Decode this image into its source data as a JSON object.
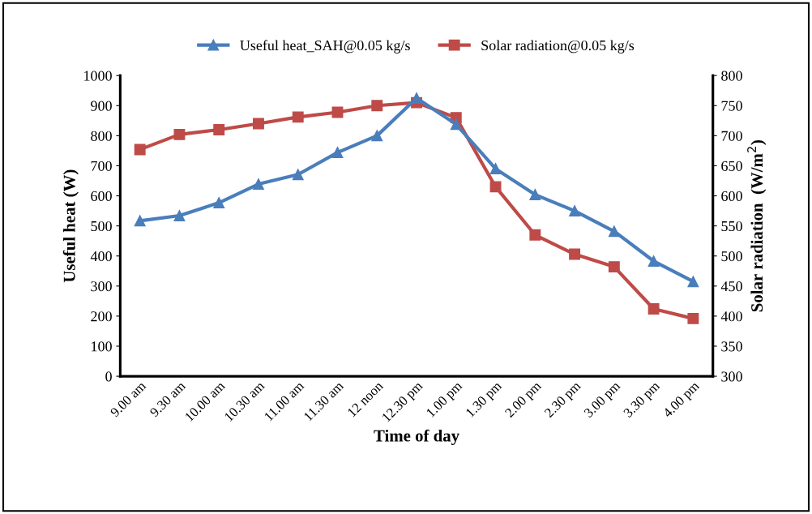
{
  "chart_data": {
    "type": "line",
    "xlabel": "Time of day",
    "ylabel": "Useful heat (W)",
    "y2label": "Solar radiation  (W/m$^{2}$)",
    "categories": [
      "9.00 am",
      "9.30 am",
      "10.00 am",
      "10.30 am",
      "11.00 am",
      "11.30 am",
      "12 noon",
      "12.30 pm",
      "1.00 pm",
      "1.30 pm",
      "2.00 pm",
      "2.30 pm",
      "3.00 pm",
      "3.30 pm",
      "4.00 pm"
    ],
    "series": [
      {
        "name": "Useful heat_SAH@0.05 kg/s",
        "color": "#4a7ebb",
        "marker": "triangle",
        "values": [
          517,
          534,
          577,
          639,
          671,
          744,
          800,
          925,
          838,
          690,
          604,
          550,
          482,
          383,
          315
        ]
      },
      {
        "name": "Solar radiation@0.05 kg/s",
        "color": "#be4b48",
        "marker": "square",
        "axis": "y2",
        "values": [
          677,
          702,
          710,
          720,
          731,
          739,
          750,
          755,
          730,
          615,
          535,
          503,
          482,
          412,
          396
        ]
      }
    ],
    "ylim": [
      0,
      1000
    ],
    "yticks": [
      0,
      100,
      200,
      300,
      400,
      500,
      600,
      700,
      800,
      900,
      1000
    ],
    "y2lim": [
      300,
      800
    ],
    "y2ticks": [
      300,
      350,
      400,
      450,
      500,
      550,
      600,
      650,
      700,
      750,
      800
    ],
    "grid": false,
    "legend": "top"
  }
}
